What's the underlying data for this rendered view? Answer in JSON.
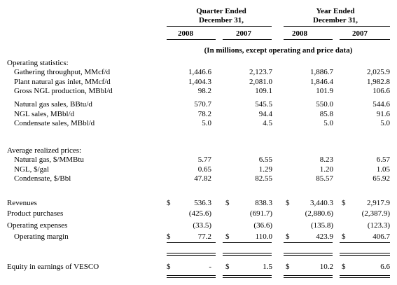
{
  "header": {
    "quarter_line1": "Quarter Ended",
    "quarter_line2": "December 31,",
    "year_line1": "Year Ended",
    "year_line2": "December 31,",
    "columns": [
      "2008",
      "2007",
      "2008",
      "2007"
    ],
    "note": "(In millions, except operating and price data)"
  },
  "sections": {
    "operating_statistics": "Operating statistics:",
    "average_prices": "Average realized prices:"
  },
  "rows": [
    {
      "label": "Gathering throughput, MMcf/d",
      "values": [
        "1,446.6",
        "2,123.7",
        "1,886.7",
        "2,025.9"
      ]
    },
    {
      "label": "Plant natural gas inlet, MMcf/d",
      "values": [
        "1,404.3",
        "2,081.0",
        "1,846.4",
        "1,982.8"
      ]
    },
    {
      "label": "Gross NGL production, MBbl/d",
      "values": [
        "98.2",
        "109.1",
        "101.9",
        "106.6"
      ]
    },
    {
      "label": "Natural gas sales, BBtu/d",
      "values": [
        "570.7",
        "545.5",
        "550.0",
        "544.6"
      ]
    },
    {
      "label": "NGL sales, MBbl/d",
      "values": [
        "78.2",
        "94.4",
        "85.8",
        "91.6"
      ]
    },
    {
      "label": "Condensate sales, MBbl/d",
      "values": [
        "5.0",
        "4.5",
        "5.0",
        "5.0"
      ]
    },
    {
      "label": "Natural gas, $/MMBtu",
      "values": [
        "5.77",
        "6.55",
        "8.23",
        "6.57"
      ]
    },
    {
      "label": "NGL, $/gal",
      "values": [
        "0.65",
        "1.29",
        "1.20",
        "1.05"
      ]
    },
    {
      "label": "Condensate, $/Bbl",
      "values": [
        "47.82",
        "82.55",
        "85.57",
        "65.92"
      ]
    },
    {
      "label": "Revenues",
      "values": [
        "536.3",
        "838.3",
        "3,440.3",
        "2,917.9"
      ]
    },
    {
      "label": "Product purchases",
      "values": [
        "(425.6)",
        "(691.7)",
        "(2,880.6)",
        "(2,387.9)"
      ]
    },
    {
      "label": "Operating expenses",
      "values": [
        "(33.5)",
        "(36.6)",
        "(135.8)",
        "(123.3)"
      ]
    },
    {
      "label": "Operating margin",
      "values": [
        "77.2",
        "110.0",
        "423.9",
        "406.7"
      ]
    },
    {
      "label": "Equity in earnings of VESCO",
      "values": [
        "-",
        "1.5",
        "10.2",
        "6.6"
      ]
    }
  ],
  "currency": "$"
}
